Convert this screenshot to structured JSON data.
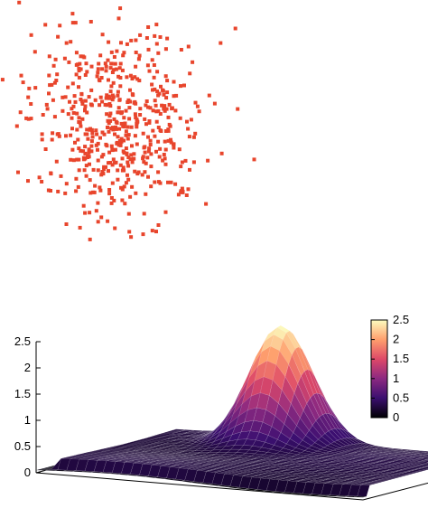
{
  "chart_data": [
    {
      "type": "scatter",
      "title": "",
      "xlabel": "",
      "ylabel": "",
      "axes_visible": false,
      "marker": "square",
      "color": "#e8452c",
      "distribution": "2D normal cloud, dense near centre, sparse toward edges",
      "center": [
        0,
        0
      ],
      "std": [
        1,
        1
      ],
      "n_points": 560
    },
    {
      "type": "surface",
      "title": "",
      "xlabel": "",
      "ylabel": "",
      "zlabel": "",
      "zlim": [
        0,
        2.5
      ],
      "z_ticks": [
        "0",
        "0.5",
        "1",
        "1.5",
        "2",
        "2.5"
      ],
      "colorbar": {
        "ticks": [
          "0",
          "0.5",
          "1",
          "1.5",
          "2",
          "2.5"
        ],
        "range": [
          0,
          2.5
        ],
        "colors": [
          "#000004",
          "#3b0f70",
          "#8c2981",
          "#de4968",
          "#fe9f6d",
          "#fcfdbf"
        ]
      },
      "surface": {
        "description": "flat sheet near z=0.25 with a single Gaussian peak",
        "baseline": 0.25,
        "peak_height": 2.5,
        "peak_location": "near back-centre of the grid",
        "grid": true
      }
    }
  ]
}
